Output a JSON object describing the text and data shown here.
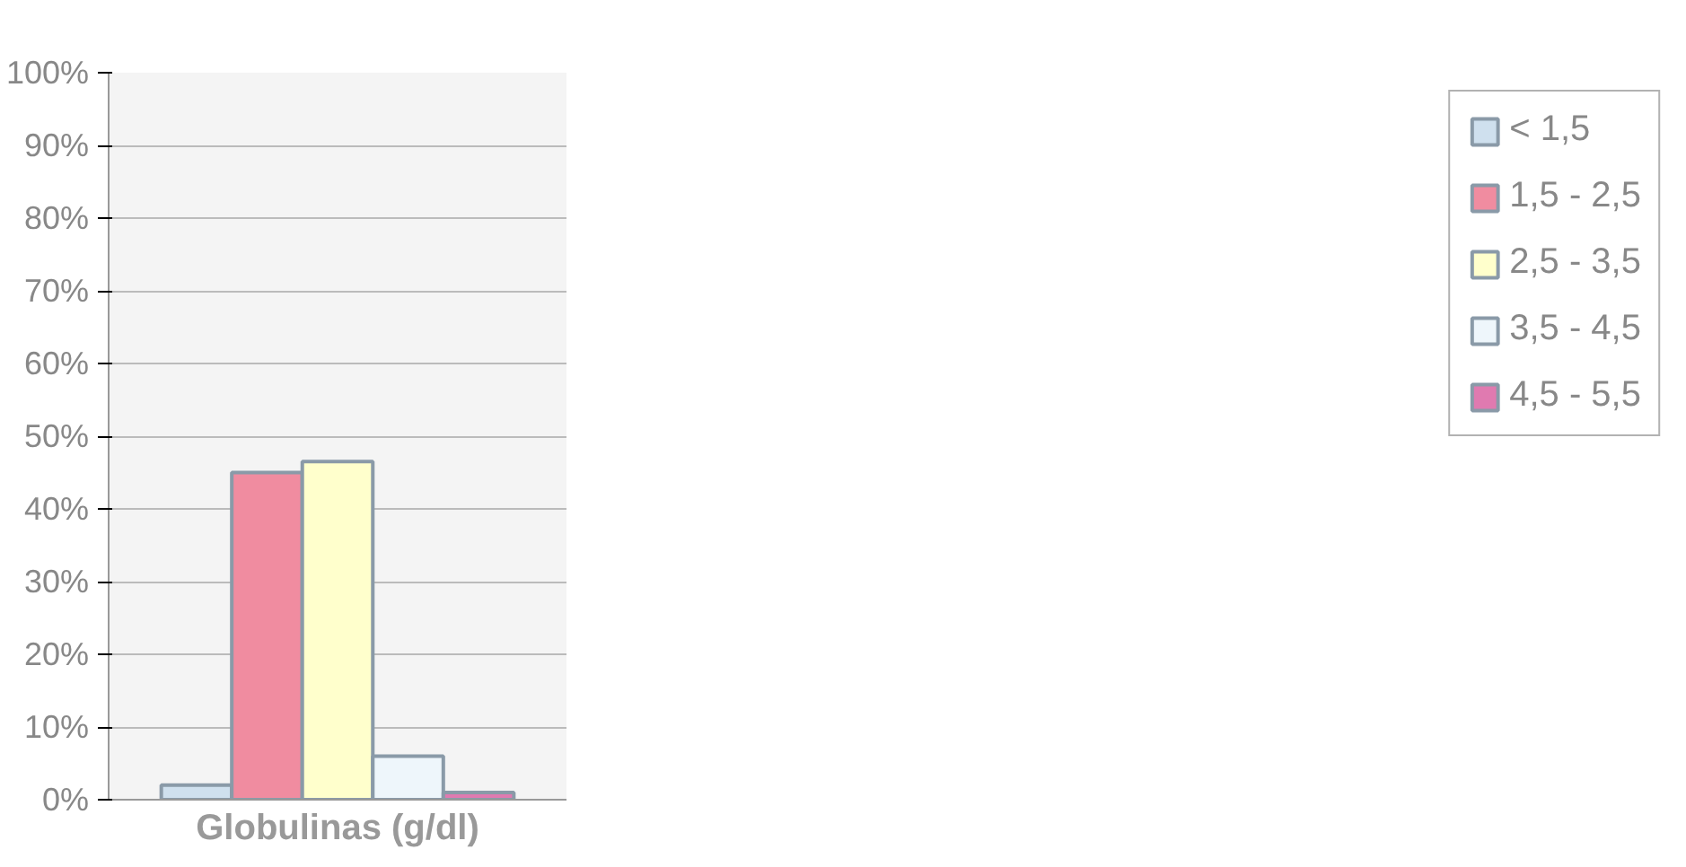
{
  "chart_data": {
    "type": "bar",
    "xlabel": "Globulinas (g/dl)",
    "categories": [
      null
    ],
    "series": [
      {
        "name": "< 1,5",
        "color": "#cfe0ee",
        "values": [
          2
        ]
      },
      {
        "name": "1,5 - 2,5",
        "color": "#f08ca0",
        "values": [
          45
        ]
      },
      {
        "name": "2,5 - 3,5",
        "color": "#ffffcc",
        "values": [
          46.5
        ]
      },
      {
        "name": "3,5 - 4,5",
        "color": "#eef6fb",
        "values": [
          6
        ]
      },
      {
        "name": "4,5 - 5,5",
        "color": "#e07ab0",
        "values": [
          1
        ]
      }
    ],
    "ylim": [
      0,
      100
    ],
    "yticks": [
      {
        "value": 0,
        "label": "0%"
      },
      {
        "value": 10,
        "label": "10%"
      },
      {
        "value": 20,
        "label": "20%"
      },
      {
        "value": 30,
        "label": "30%"
      },
      {
        "value": 40,
        "label": "40%"
      },
      {
        "value": 50,
        "label": "50%"
      },
      {
        "value": 60,
        "label": "60%"
      },
      {
        "value": 70,
        "label": "70%"
      },
      {
        "value": 80,
        "label": "80%"
      },
      {
        "value": 90,
        "label": "90%"
      },
      {
        "value": 100,
        "label": "100%"
      }
    ],
    "grid": "y",
    "legend": "right"
  }
}
